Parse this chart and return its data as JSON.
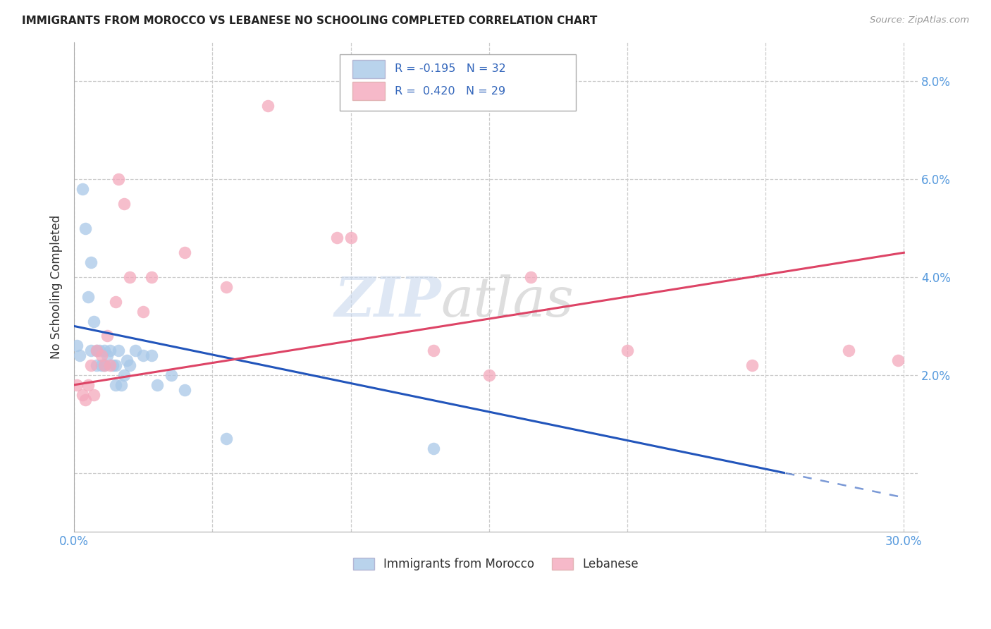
{
  "title": "IMMIGRANTS FROM MOROCCO VS LEBANESE NO SCHOOLING COMPLETED CORRELATION CHART",
  "source": "Source: ZipAtlas.com",
  "ylabel": "No Schooling Completed",
  "xlim": [
    0.0,
    0.305
  ],
  "ylim": [
    -0.012,
    0.088
  ],
  "morocco_R": -0.195,
  "morocco_N": 32,
  "lebanese_R": 0.42,
  "lebanese_N": 29,
  "morocco_color": "#a8c8e8",
  "lebanese_color": "#f4a8bc",
  "trendline_morocco_color": "#2255bb",
  "trendline_lebanese_color": "#dd4466",
  "legend_label_morocco": "Immigrants from Morocco",
  "legend_label_lebanese": "Lebanese",
  "grid_color": "#cccccc",
  "ytick_positions": [
    0.0,
    0.02,
    0.04,
    0.06,
    0.08
  ],
  "xtick_positions": [
    0.0,
    0.05,
    0.1,
    0.15,
    0.2,
    0.25,
    0.3
  ],
  "morocco_x": [
    0.001,
    0.002,
    0.003,
    0.004,
    0.005,
    0.006,
    0.006,
    0.007,
    0.008,
    0.008,
    0.009,
    0.01,
    0.011,
    0.011,
    0.012,
    0.013,
    0.014,
    0.015,
    0.015,
    0.016,
    0.017,
    0.018,
    0.019,
    0.02,
    0.022,
    0.025,
    0.028,
    0.03,
    0.035,
    0.04,
    0.055,
    0.13
  ],
  "morocco_y": [
    0.026,
    0.024,
    0.058,
    0.05,
    0.036,
    0.043,
    0.025,
    0.031,
    0.025,
    0.022,
    0.025,
    0.022,
    0.025,
    0.022,
    0.024,
    0.025,
    0.022,
    0.022,
    0.018,
    0.025,
    0.018,
    0.02,
    0.023,
    0.022,
    0.025,
    0.024,
    0.024,
    0.018,
    0.02,
    0.017,
    0.007,
    0.005
  ],
  "lebanese_x": [
    0.001,
    0.003,
    0.004,
    0.005,
    0.006,
    0.007,
    0.008,
    0.01,
    0.011,
    0.012,
    0.013,
    0.015,
    0.016,
    0.018,
    0.02,
    0.025,
    0.028,
    0.04,
    0.055,
    0.07,
    0.095,
    0.1,
    0.13,
    0.15,
    0.165,
    0.2,
    0.245,
    0.28,
    0.298
  ],
  "lebanese_y": [
    0.018,
    0.016,
    0.015,
    0.018,
    0.022,
    0.016,
    0.025,
    0.024,
    0.022,
    0.028,
    0.022,
    0.035,
    0.06,
    0.055,
    0.04,
    0.033,
    0.04,
    0.045,
    0.038,
    0.075,
    0.048,
    0.048,
    0.025,
    0.02,
    0.04,
    0.025,
    0.022,
    0.025,
    0.023
  ]
}
